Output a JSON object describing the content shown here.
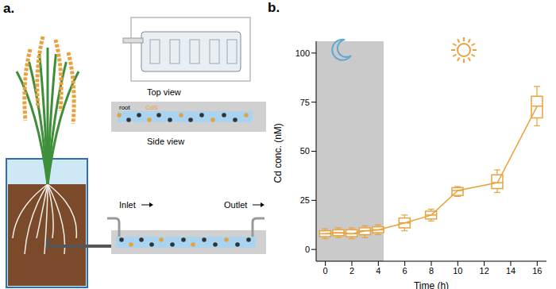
{
  "panel_a": {
    "label": "a.",
    "top_view": "Top view",
    "side_view": "Side view",
    "labels": [
      "root",
      "CdS"
    ],
    "inlet": "Inlet",
    "outlet": "Outlet"
  },
  "chart_data": {
    "type": "box",
    "label": "b.",
    "x_label": "Time (h)",
    "y_label": "Cd conc. (nM)",
    "x": [
      0,
      1,
      2,
      3,
      4,
      6,
      8,
      10,
      13,
      16
    ],
    "values": [
      8,
      8.5,
      8,
      9.5,
      10,
      13.5,
      17.5,
      30,
      34,
      73
    ],
    "box_low": [
      6.5,
      7,
      6.5,
      7.5,
      8.5,
      11,
      15.5,
      27.5,
      31,
      67
    ],
    "box_high": [
      9.5,
      10,
      10,
      11,
      11.5,
      16,
      19.5,
      31.5,
      38,
      78
    ],
    "whisker_low": [
      5.5,
      6,
      5.5,
      6,
      7.5,
      9.5,
      14.5,
      27,
      29,
      63
    ],
    "whisker_high": [
      10.5,
      11,
      11,
      12,
      12.5,
      17.5,
      20.5,
      32,
      40.5,
      83
    ],
    "color": "#e9a23b",
    "xlim": [
      -0.7,
      16.7
    ],
    "xticks": [
      0,
      2,
      4,
      6,
      8,
      10,
      12,
      14,
      16
    ],
    "ylim": [
      -6,
      106
    ],
    "yticks": [
      0,
      25,
      50,
      75,
      100
    ],
    "night": [
      -0.7,
      4.4
    ]
  }
}
